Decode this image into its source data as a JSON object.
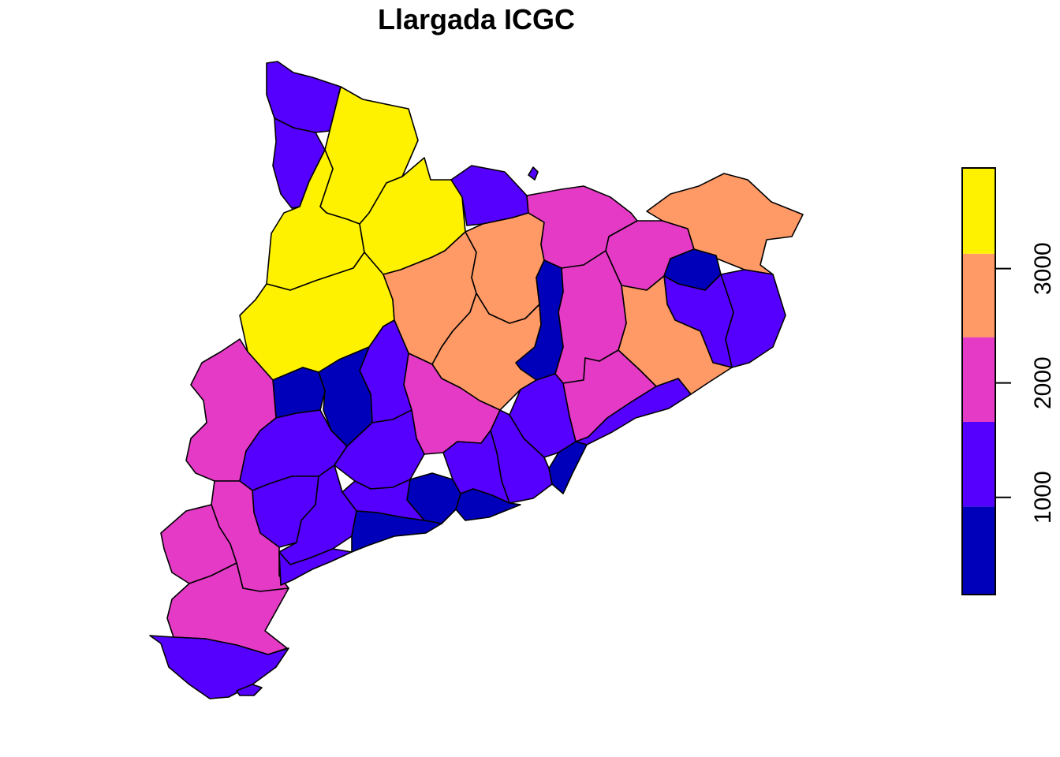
{
  "map": {
    "title": "Llargada ICGC",
    "palette": {
      "dark_blue": "#0000BB",
      "violet_blue": "#5500FF",
      "magenta": "#E43AC6",
      "salmon": "#FF9966",
      "yellow": "#FFF200"
    }
  },
  "legend": {
    "type": "color-bar",
    "placement": "right",
    "bins": [
      {
        "color": "#0000BB",
        "from": 150,
        "to": 920
      },
      {
        "color": "#5500FF",
        "from": 920,
        "to": 1660
      },
      {
        "color": "#E43AC6",
        "from": 1660,
        "to": 2400
      },
      {
        "color": "#FF9966",
        "from": 2400,
        "to": 3130
      },
      {
        "color": "#FFF200",
        "from": 3130,
        "to": 3880
      }
    ],
    "ticks": [
      {
        "value": 1000,
        "label": "1000"
      },
      {
        "value": 2000,
        "label": "2000"
      },
      {
        "value": 3000,
        "label": "3000"
      }
    ],
    "range": [
      150,
      3880
    ]
  }
}
